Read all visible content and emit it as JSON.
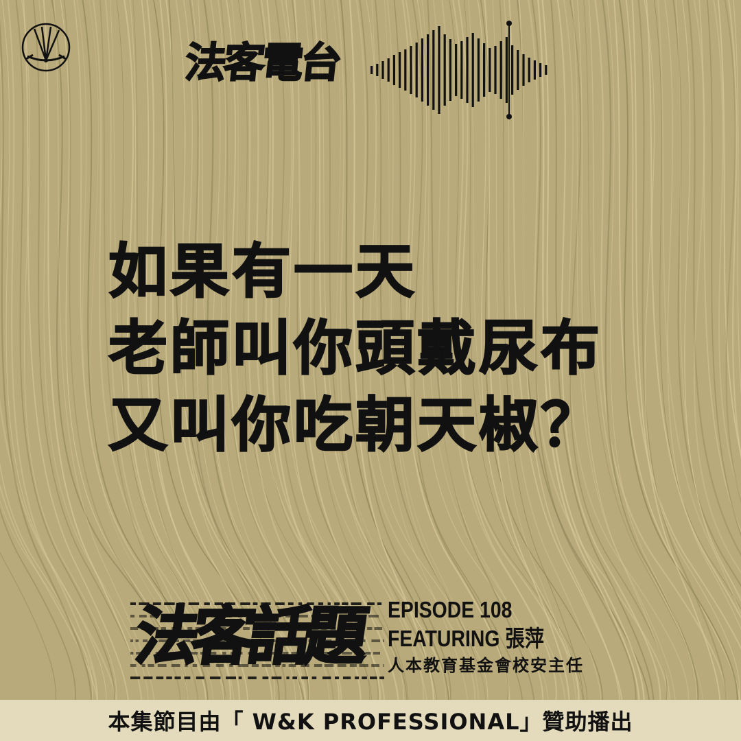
{
  "header": {
    "show_title": "法客電台",
    "logo_icon": "dragonfly-logo-icon",
    "waveform_icon": "sound-waveform-icon"
  },
  "headline": {
    "lines": [
      "如果有一天",
      "老師叫你頭戴尿布",
      "又叫你吃朝天椒？"
    ]
  },
  "series": {
    "title": "法客話題"
  },
  "episode": {
    "number_label": "EPISODE 108",
    "featuring_label": "FEATURING",
    "guest_name": "張萍",
    "guest_role": "人本教育基金會校安主任"
  },
  "sponsor": {
    "text": "本集節目由「 W&K PROFESSIONAL」贊助播出"
  },
  "colors": {
    "background": "#b9aa7b",
    "texture_light": "#d6c898",
    "texture_dark": "#8d8455",
    "ink": "#111111",
    "sponsor_bar": "#e4dbbd"
  }
}
